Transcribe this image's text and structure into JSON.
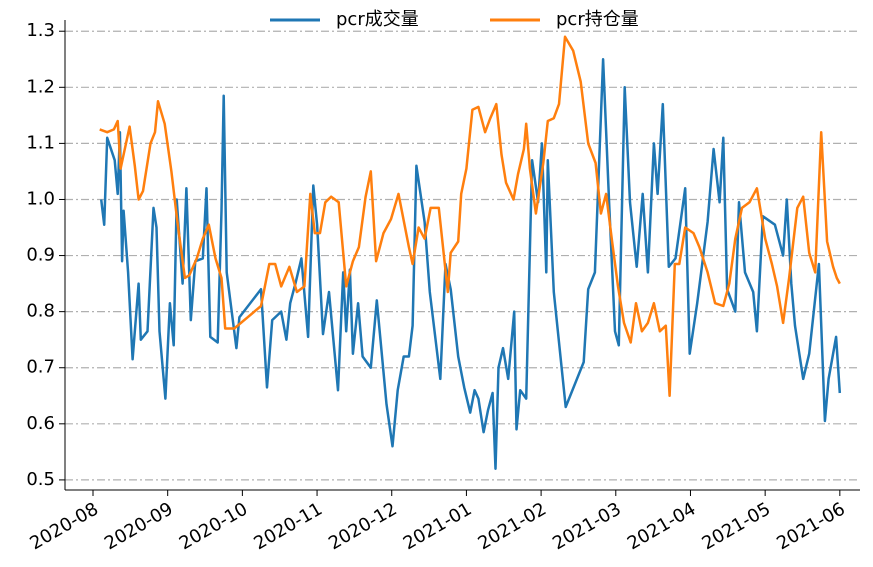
{
  "chart_data": {
    "type": "line",
    "xlim": [
      -0.375,
      10.27
    ],
    "ylim": [
      0.482,
      1.32
    ],
    "xticks": [
      {
        "value": 0,
        "label": "2020-08"
      },
      {
        "value": 1,
        "label": "2020-09"
      },
      {
        "value": 2,
        "label": "2020-10"
      },
      {
        "value": 3,
        "label": "2020-11"
      },
      {
        "value": 4,
        "label": "2020-12"
      },
      {
        "value": 5,
        "label": "2021-01"
      },
      {
        "value": 6,
        "label": "2021-02"
      },
      {
        "value": 7,
        "label": "2021-03"
      },
      {
        "value": 8,
        "label": "2021-04"
      },
      {
        "value": 9,
        "label": "2021-05"
      },
      {
        "value": 10,
        "label": "2021-06"
      }
    ],
    "yticks": [
      0.5,
      0.6,
      0.7,
      0.8,
      0.9,
      {
        "value": 1,
        "label": "1.0"
      },
      1.1,
      1.2,
      1.3
    ],
    "grid": true,
    "legend": "top",
    "series": [
      {
        "name": "pcr成交量",
        "color": "#1f77b4",
        "x": [
          0.11,
          0.15,
          0.19,
          0.29,
          0.33,
          0.36,
          0.39,
          0.41,
          0.47,
          0.53,
          0.61,
          0.64,
          0.73,
          0.81,
          0.85,
          0.89,
          0.97,
          1.03,
          1.08,
          1.12,
          1.2,
          1.25,
          1.31,
          1.37,
          1.47,
          1.52,
          1.57,
          1.67,
          1.72,
          1.75,
          1.79,
          1.92,
          1.96,
          2.25,
          2.33,
          2.4,
          2.52,
          2.59,
          2.64,
          2.71,
          2.79,
          2.88,
          2.95,
          3.0,
          3.08,
          3.16,
          3.28,
          3.35,
          3.39,
          3.44,
          3.48,
          3.55,
          3.61,
          3.72,
          3.8,
          3.93,
          4.01,
          4.08,
          4.16,
          4.23,
          4.28,
          4.33,
          4.44,
          4.51,
          4.65,
          4.72,
          4.79,
          4.89,
          4.97,
          5.05,
          5.11,
          5.16,
          5.23,
          5.29,
          5.35,
          5.39,
          5.43,
          5.49,
          5.56,
          5.64,
          5.67,
          5.72,
          5.8,
          5.88,
          5.96,
          6.01,
          6.07,
          6.09,
          6.17,
          6.33,
          6.57,
          6.63,
          6.72,
          6.83,
          6.91,
          6.99,
          7.04,
          7.12,
          7.19,
          7.28,
          7.36,
          7.43,
          7.51,
          7.56,
          7.63,
          7.71,
          7.8,
          7.93,
          7.99,
          8.09,
          8.23,
          8.31,
          8.39,
          8.44,
          8.49,
          8.6,
          8.65,
          8.73,
          8.84,
          8.89,
          8.97,
          9.13,
          9.24,
          9.29,
          9.35,
          9.4,
          9.51,
          9.59,
          9.72,
          9.8,
          9.85,
          9.95,
          10.0
        ],
        "values": [
          1.0,
          0.955,
          1.11,
          1.07,
          1.01,
          1.12,
          0.89,
          0.98,
          0.87,
          0.715,
          0.85,
          0.75,
          0.765,
          0.985,
          0.95,
          0.765,
          0.645,
          0.815,
          0.74,
          1.0,
          0.85,
          1.02,
          0.785,
          0.89,
          0.895,
          1.02,
          0.755,
          0.745,
          0.98,
          1.185,
          0.87,
          0.735,
          0.79,
          0.84,
          0.665,
          0.785,
          0.8,
          0.75,
          0.815,
          0.85,
          0.895,
          0.755,
          1.025,
          0.955,
          0.76,
          0.835,
          0.66,
          0.87,
          0.765,
          0.875,
          0.725,
          0.815,
          0.72,
          0.7,
          0.82,
          0.635,
          0.56,
          0.66,
          0.72,
          0.72,
          0.775,
          1.06,
          0.96,
          0.835,
          0.68,
          0.885,
          0.84,
          0.72,
          0.665,
          0.62,
          0.66,
          0.645,
          0.585,
          0.625,
          0.655,
          0.52,
          0.7,
          0.735,
          0.68,
          0.8,
          0.59,
          0.66,
          0.645,
          1.07,
          0.995,
          1.1,
          0.87,
          1.07,
          0.835,
          0.63,
          0.71,
          0.84,
          0.87,
          1.25,
          0.995,
          0.765,
          0.74,
          1.2,
          0.995,
          0.88,
          1.01,
          0.87,
          1.1,
          1.01,
          1.17,
          0.88,
          0.895,
          1.02,
          0.725,
          0.815,
          0.96,
          1.09,
          0.995,
          1.11,
          0.84,
          0.8,
          0.995,
          0.87,
          0.835,
          0.765,
          0.97,
          0.955,
          0.9,
          1.0,
          0.85,
          0.775,
          0.68,
          0.725,
          0.885,
          0.605,
          0.68,
          0.755,
          0.655
        ]
      },
      {
        "name": "pcr持仓量",
        "color": "#ff7f0e",
        "x": [
          0.09,
          0.19,
          0.28,
          0.33,
          0.37,
          0.49,
          0.56,
          0.61,
          0.67,
          0.77,
          0.83,
          0.87,
          0.96,
          1.05,
          1.13,
          1.23,
          1.29,
          1.39,
          1.47,
          1.55,
          1.64,
          1.72,
          1.77,
          1.89,
          2.07,
          2.25,
          2.36,
          2.44,
          2.52,
          2.63,
          2.73,
          2.83,
          2.91,
          2.97,
          3.04,
          3.11,
          3.19,
          3.29,
          3.39,
          3.48,
          3.56,
          3.65,
          3.72,
          3.79,
          3.89,
          3.99,
          4.09,
          4.23,
          4.28,
          4.36,
          4.44,
          4.52,
          4.63,
          4.75,
          4.79,
          4.89,
          4.93,
          5.0,
          5.08,
          5.16,
          5.25,
          5.32,
          5.4,
          5.47,
          5.53,
          5.63,
          5.69,
          5.77,
          5.8,
          5.85,
          5.93,
          6.03,
          6.09,
          6.17,
          6.24,
          6.32,
          6.43,
          6.53,
          6.63,
          6.73,
          6.8,
          6.87,
          6.95,
          7.03,
          7.11,
          7.2,
          7.27,
          7.35,
          7.43,
          7.51,
          7.59,
          7.67,
          7.72,
          7.79,
          7.85,
          7.93,
          8.04,
          8.12,
          8.23,
          8.33,
          8.44,
          8.52,
          8.6,
          8.69,
          8.79,
          8.89,
          9.0,
          9.09,
          9.16,
          9.24,
          9.32,
          9.43,
          9.51,
          9.59,
          9.67,
          9.75,
          9.83,
          9.91,
          9.96,
          10.0
        ],
        "values": [
          1.125,
          1.12,
          1.125,
          1.14,
          1.055,
          1.13,
          1.06,
          1.0,
          1.015,
          1.1,
          1.12,
          1.175,
          1.135,
          1.05,
          0.96,
          0.86,
          0.865,
          0.895,
          0.93,
          0.955,
          0.895,
          0.86,
          0.77,
          0.77,
          0.79,
          0.81,
          0.885,
          0.885,
          0.845,
          0.88,
          0.835,
          0.845,
          1.01,
          0.94,
          0.94,
          0.995,
          1.005,
          0.995,
          0.845,
          0.89,
          0.915,
          1.005,
          1.05,
          0.89,
          0.94,
          0.965,
          1.01,
          0.915,
          0.885,
          0.95,
          0.93,
          0.985,
          0.985,
          0.835,
          0.905,
          0.925,
          1.01,
          1.055,
          1.16,
          1.165,
          1.12,
          1.145,
          1.17,
          1.08,
          1.03,
          1.0,
          1.045,
          1.09,
          1.135,
          1.055,
          0.975,
          1.065,
          1.14,
          1.145,
          1.17,
          1.29,
          1.265,
          1.21,
          1.1,
          1.065,
          0.975,
          1.01,
          0.925,
          0.845,
          0.78,
          0.745,
          0.815,
          0.765,
          0.78,
          0.815,
          0.765,
          0.775,
          0.65,
          0.885,
          0.885,
          0.95,
          0.94,
          0.915,
          0.87,
          0.815,
          0.81,
          0.85,
          0.93,
          0.985,
          0.995,
          1.02,
          0.93,
          0.885,
          0.845,
          0.78,
          0.86,
          0.985,
          1.005,
          0.905,
          0.87,
          1.12,
          0.925,
          0.88,
          0.86,
          0.85
        ]
      }
    ]
  }
}
